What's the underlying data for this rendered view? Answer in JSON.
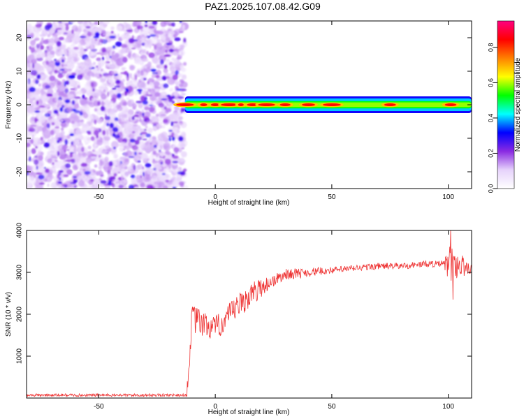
{
  "figure": {
    "title": "PAZ1.2025.107.08.42.G09"
  },
  "chart_data": [
    {
      "type": "heatmap",
      "xlabel": "Height of straight line (km)",
      "ylabel": "Frequency (Hz)",
      "xlim": [
        -81,
        110
      ],
      "ylim": [
        -25,
        25
      ],
      "x_ticks": [
        -50,
        0,
        50,
        100
      ],
      "y_ticks": [
        -20,
        -10,
        0,
        10,
        20
      ],
      "colorbar": {
        "label": "Normalized spectral amplitude",
        "range": [
          0.0,
          0.95
        ],
        "ticks": [
          0.0,
          0.2,
          0.4,
          0.6,
          0.8
        ],
        "colormap": [
          "#ffffff",
          "#e6d2fb",
          "#8a2be2",
          "#0000ff",
          "#00ffff",
          "#00ff00",
          "#ffff00",
          "#ff8000",
          "#ff0000",
          "#ff0080"
        ]
      },
      "noise_region_x": [
        -81,
        -13
      ],
      "noise_blobs": 700,
      "noise_cell_count": 1500,
      "signal_band": {
        "x_range": [
          -13,
          110
        ],
        "center_freq": 0,
        "half_width_hz": [
          1.0,
          2.5
        ],
        "peaks_x": [
          -13,
          -5,
          0,
          6,
          11,
          16,
          22,
          30,
          40,
          50,
          75,
          101
        ]
      },
      "grid": false
    },
    {
      "type": "line",
      "xlabel": "Height of straight line (km)",
      "ylabel": "SNR (10 * v/v)",
      "xlim": [
        -81,
        110
      ],
      "ylim": [
        0,
        4000
      ],
      "x_ticks": [
        -50,
        0,
        50,
        100
      ],
      "y_ticks": [
        1000,
        2000,
        3000,
        4000
      ],
      "series": [
        {
          "color": "#ee3333",
          "x_step": 0.2,
          "values_profile": [
            [
              -81,
              70
            ],
            [
              -12,
              70
            ],
            [
              -10,
              1900
            ],
            [
              -5,
              1750
            ],
            [
              0,
              1650
            ],
            [
              5,
              1900
            ],
            [
              10,
              2200
            ],
            [
              15,
              2450
            ],
            [
              20,
              2650
            ],
            [
              25,
              2800
            ],
            [
              30,
              2950
            ],
            [
              40,
              3000
            ],
            [
              50,
              3050
            ],
            [
              60,
              3100
            ],
            [
              70,
              3150
            ],
            [
              80,
              3150
            ],
            [
              90,
              3200
            ],
            [
              98,
              3200
            ],
            [
              102,
              3200
            ],
            [
              106,
              3150
            ],
            [
              110,
              3100
            ]
          ],
          "noise_amplitude_profile": [
            [
              -81,
              35
            ],
            [
              -12,
              35
            ],
            [
              -10,
              350
            ],
            [
              0,
              300
            ],
            [
              15,
              300
            ],
            [
              25,
              150
            ],
            [
              50,
              80
            ],
            [
              98,
              80
            ],
            [
              100,
              450
            ],
            [
              105,
              300
            ],
            [
              110,
              150
            ]
          ],
          "annotated_extremes": [
            {
              "x": -12,
              "y": 400
            },
            {
              "x": 101,
              "y": 4000
            },
            {
              "x": 102,
              "y": 2350
            }
          ]
        }
      ],
      "grid": false
    }
  ]
}
